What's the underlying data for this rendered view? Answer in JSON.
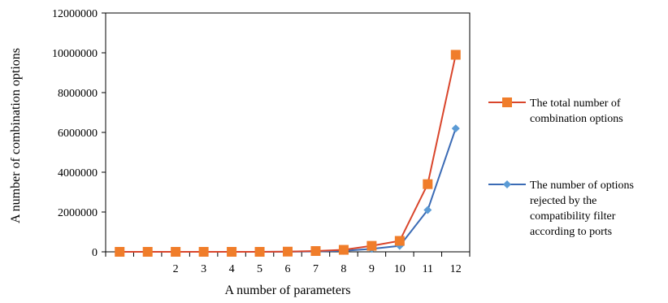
{
  "chart_data": {
    "type": "line",
    "title": "",
    "xlabel": "A number of parameters",
    "ylabel": "A number of combination options",
    "categories": [
      "",
      "",
      "2",
      "3",
      "4",
      "5",
      "6",
      "7",
      "8",
      "9",
      "10",
      "11",
      "12"
    ],
    "ylim": [
      0,
      12000000
    ],
    "yticks": [
      "0",
      "2000000",
      "4000000",
      "6000000",
      "8000000",
      "10000000",
      "12000000"
    ],
    "grid": false,
    "legend_position": "right",
    "series": [
      {
        "name_lines": [
          "The total number of",
          "combination options"
        ],
        "color": "#d9452b",
        "marker_color": "#f07d2a",
        "marker": "square",
        "values": [
          0,
          0,
          0,
          0,
          0,
          0,
          10000,
          40000,
          100000,
          300000,
          550000,
          3400000,
          9900000
        ]
      },
      {
        "name_lines": [
          "The number of options",
          "rejected by the",
          "compatibility filter",
          "according to ports"
        ],
        "color": "#3b6bb5",
        "marker_color": "#5b9bd5",
        "marker": "diamond",
        "values": [
          0,
          0,
          0,
          0,
          0,
          0,
          5000,
          20000,
          50000,
          150000,
          300000,
          2100000,
          6200000
        ]
      }
    ]
  }
}
